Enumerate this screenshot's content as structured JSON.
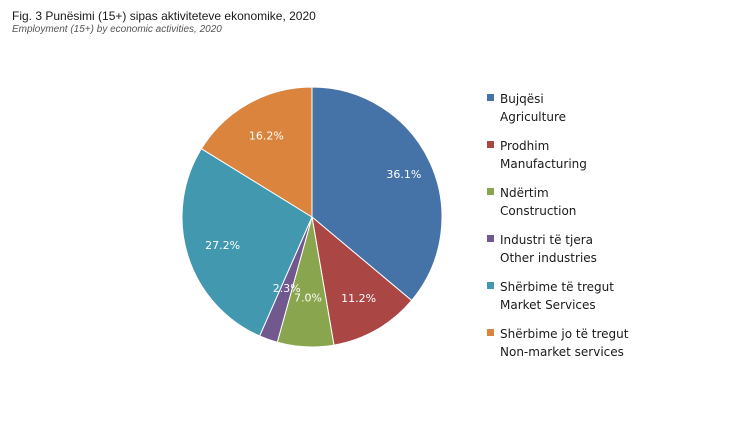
{
  "title": "Fig. 3 Punësimi (15+) sipas aktiviteteve ekonomike, 2020",
  "subtitle": "Employment (15+) by economic activities, 2020",
  "chart_data": {
    "type": "pie",
    "slices": [
      {
        "label_sq": "Bujqësi",
        "label_en": "Agriculture",
        "value": 36.1,
        "display": "36.1%",
        "color": "#4572A7"
      },
      {
        "label_sq": "Prodhim",
        "label_en": "Manufacturing",
        "value": 11.2,
        "display": "11.2%",
        "color": "#AA4643"
      },
      {
        "label_sq": "Ndërtim",
        "label_en": "Construction",
        "value": 7.0,
        "display": "7.0%",
        "color": "#89A54E"
      },
      {
        "label_sq": "Industri të tjera",
        "label_en": "Other industries",
        "value": 2.3,
        "display": "2.3%",
        "color": "#71588F"
      },
      {
        "label_sq": "Shërbime të tregut",
        "label_en": "Market Services",
        "value": 27.2,
        "display": "27.2%",
        "color": "#4198AF"
      },
      {
        "label_sq": "Shërbime jo të tregut",
        "label_en": "Non-market services",
        "value": 16.2,
        "display": "16.2%",
        "color": "#DB843D"
      }
    ],
    "start_angle": "12 o'clock",
    "direction": "clockwise",
    "legend_position": "right"
  }
}
